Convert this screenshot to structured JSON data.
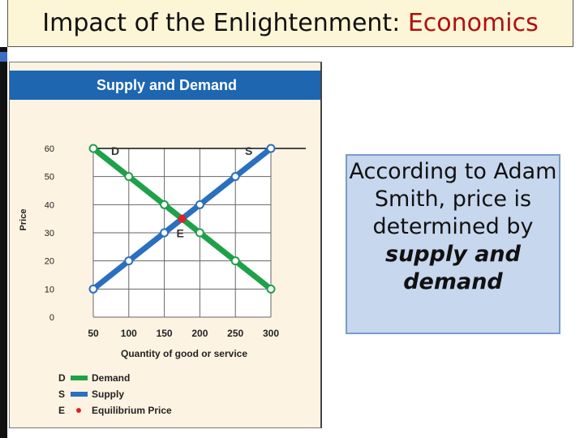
{
  "slide": {
    "title_main": "Impact of the Enlightenment: ",
    "title_accent": "Economics"
  },
  "colors": {
    "accent": "#b01010",
    "demand": "#1fa14a",
    "supply": "#2a6fc0",
    "equilibrium": "#e0202a",
    "header": "#1e66b0"
  },
  "note": {
    "body": "According to Adam Smith, price is determined by",
    "emphasis": "supply and demand"
  },
  "chart_data": {
    "type": "line",
    "title": "Supply and Demand",
    "xlabel": "Quantity of good or service",
    "ylabel": "Price",
    "xticks": [
      50,
      100,
      150,
      200,
      250,
      300
    ],
    "yticks": [
      0,
      10,
      20,
      30,
      40,
      50,
      60
    ],
    "xlim": [
      50,
      300
    ],
    "ylim": [
      0,
      60
    ],
    "grid": true,
    "series": [
      {
        "key": "demand",
        "letter": "D",
        "name": "Demand",
        "color": "#1fa14a",
        "x": [
          50,
          100,
          150,
          200,
          250,
          300
        ],
        "y": [
          60,
          50,
          40,
          30,
          20,
          10
        ]
      },
      {
        "key": "supply",
        "letter": "S",
        "name": "Supply",
        "color": "#2a6fc0",
        "x": [
          50,
          100,
          150,
          200,
          250,
          300
        ],
        "y": [
          10,
          20,
          30,
          40,
          50,
          60
        ]
      }
    ],
    "equilibrium": {
      "letter": "E",
      "name": "Equilibrium Price",
      "x": 175,
      "y": 35,
      "color": "#e0202a"
    }
  }
}
